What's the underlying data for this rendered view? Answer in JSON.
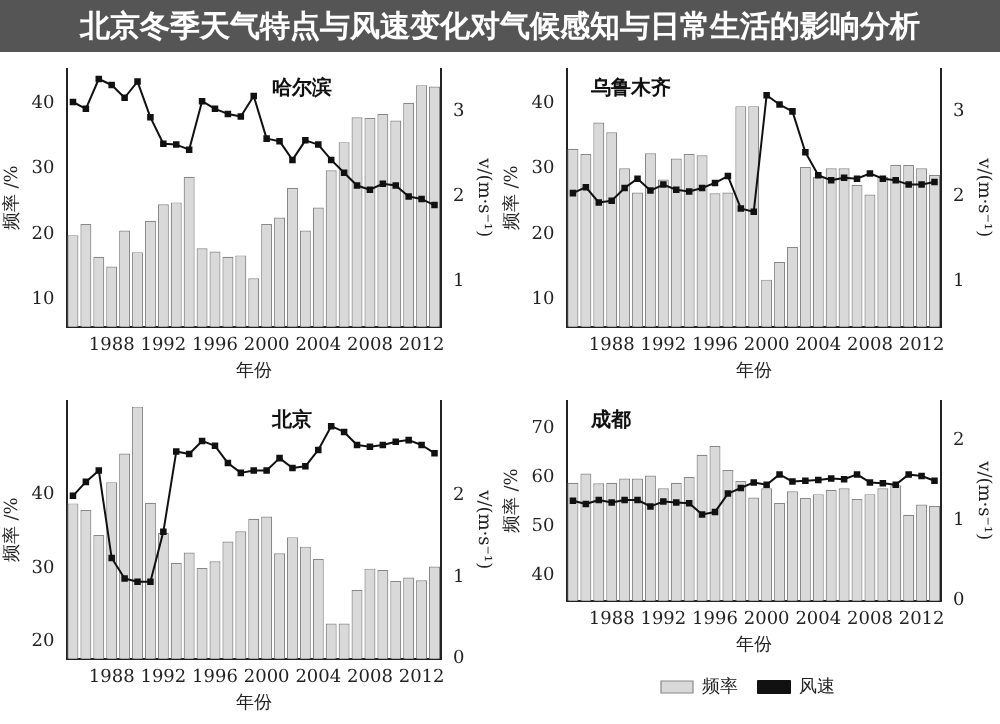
{
  "chart_data": [
    {
      "type": "bar",
      "title": "北京冬季天气特点与风速变化对气候感知与日常生活的影响分析",
      "annotations": [
        "哈尔滨"
      ],
      "xlabel": "年份",
      "ylabel": "频率 /%",
      "y2label": "v/(m·s⁻¹)",
      "categories": [
        null,
        null,
        null,
        "1988",
        null,
        null,
        null,
        "1992",
        null,
        null,
        null,
        "1996",
        null,
        null,
        null,
        "2000",
        null,
        null,
        null,
        "2004",
        null,
        null,
        null,
        "2008",
        null,
        null,
        null,
        "2012",
        null
      ],
      "ylim": [
        5.8,
        45.2
      ],
      "yticks": [
        10,
        20,
        30,
        40
      ],
      "y2lim": [
        0.47,
        3.5
      ],
      "y2ticks": [
        1,
        2,
        3
      ],
      "grid": false,
      "legend": false,
      "series": [
        {
          "color": "#d9d9d9",
          "values": [
            19.8,
            21.5,
            16.5,
            15,
            20.5,
            17.2,
            22,
            24.5,
            24.8,
            28.7,
            17.8,
            17.3,
            16.5,
            16.7,
            13.2,
            21.5,
            22.5,
            27,
            20.5,
            24,
            29.7,
            34,
            37.8,
            37.7,
            38.3,
            37.3,
            40,
            42.7,
            42.5
          ]
        },
        {
          "type": "line",
          "axis": "y2",
          "color": "#111111",
          "marker": "square",
          "values": [
            3.11,
            3.03,
            3.38,
            3.31,
            3.16,
            3.35,
            2.93,
            2.62,
            2.61,
            2.55,
            3.12,
            3.03,
            2.97,
            2.94,
            3.18,
            2.68,
            2.65,
            2.43,
            2.66,
            2.61,
            2.43,
            2.28,
            2.13,
            2.08,
            2.15,
            2.13,
            2.0,
            1.97,
            1.9
          ]
        }
      ]
    },
    {
      "type": "bar",
      "annotations": [
        "乌鲁木齐"
      ],
      "xlabel": "年份",
      "ylabel": "频率 /%",
      "y2label": "v/(m·s⁻¹)",
      "categories": [
        null,
        null,
        null,
        "1988",
        null,
        null,
        null,
        "1992",
        null,
        null,
        null,
        "1996",
        null,
        null,
        null,
        "2000",
        null,
        null,
        null,
        "2004",
        null,
        null,
        null,
        "2008",
        null,
        null,
        null,
        "2012",
        null
      ],
      "ylim": [
        5.8,
        45.2
      ],
      "yticks": [
        10,
        20,
        30,
        40
      ],
      "y2lim": [
        0.47,
        3.5
      ],
      "y2ticks": [
        1,
        2,
        3
      ],
      "grid": false,
      "legend": false,
      "series": [
        {
          "color": "#d9d9d9",
          "values": [
            33,
            32.2,
            37,
            35.5,
            30,
            26.3,
            32.3,
            28.3,
            31.5,
            32.2,
            32,
            26.2,
            26.3,
            39.5,
            39.5,
            13,
            15.7,
            18,
            30.2,
            28.7,
            30,
            30,
            27.5,
            26,
            28.7,
            30.5,
            30.5,
            30,
            29
          ]
        },
        {
          "type": "line",
          "axis": "y2",
          "color": "#111111",
          "marker": "square",
          "values": [
            2.04,
            2.11,
            1.93,
            1.95,
            2.1,
            2.21,
            2.07,
            2.14,
            2.08,
            2.06,
            2.1,
            2.16,
            2.24,
            1.86,
            1.82,
            3.19,
            3.08,
            3.0,
            2.52,
            2.25,
            2.19,
            2.22,
            2.21,
            2.27,
            2.21,
            2.19,
            2.14,
            2.14,
            2.17
          ]
        }
      ]
    },
    {
      "type": "bar",
      "annotations": [
        "北京"
      ],
      "xlabel": "年份",
      "ylabel": "频率 /%",
      "y2label": "v/(m·s⁻¹)",
      "categories": [
        null,
        null,
        null,
        "1988",
        null,
        null,
        null,
        "1992",
        null,
        null,
        null,
        "1996",
        null,
        null,
        null,
        "2000",
        null,
        null,
        null,
        "2004",
        null,
        null,
        null,
        "2008",
        null,
        null,
        null,
        "2012",
        null
      ],
      "ylim": [
        17.6,
        52.8
      ],
      "yticks": [
        20,
        30,
        40
      ],
      "y2lim": [
        0,
        3.15
      ],
      "y2ticks": [
        0,
        1,
        2
      ],
      "grid": false,
      "legend": false,
      "series": [
        {
          "color": "#d9d9d9",
          "values": [
            38.8,
            37.9,
            34.5,
            41.7,
            45.6,
            52,
            38.9,
            34.8,
            30.7,
            32.1,
            30,
            30.9,
            33.6,
            35,
            36.7,
            37,
            32,
            34.2,
            32.9,
            31.2,
            22.4,
            22.4,
            27,
            29.9,
            29.7,
            28.2,
            28.7,
            28.3,
            30.2
          ]
        },
        {
          "type": "line",
          "axis": "y2",
          "color": "#111111",
          "marker": "square",
          "values": [
            1.99,
            2.16,
            2.3,
            1.23,
            0.98,
            0.94,
            0.94,
            1.55,
            2.53,
            2.5,
            2.66,
            2.6,
            2.39,
            2.27,
            2.3,
            2.3,
            2.45,
            2.33,
            2.35,
            2.55,
            2.84,
            2.77,
            2.61,
            2.59,
            2.61,
            2.65,
            2.67,
            2.61,
            2.51
          ]
        }
      ]
    },
    {
      "type": "bar",
      "annotations": [
        "成都"
      ],
      "xlabel": "年份",
      "ylabel": "频率 /%",
      "y2label": "v/(m·s⁻¹)",
      "categories": [
        null,
        null,
        null,
        "1988",
        null,
        null,
        null,
        "1992",
        null,
        null,
        null,
        "1996",
        null,
        null,
        null,
        "2000",
        null,
        null,
        null,
        "2004",
        null,
        null,
        null,
        "2008",
        null,
        null,
        null,
        "2012",
        null
      ],
      "ylim": [
        34.8,
        75.5
      ],
      "yticks": [
        40,
        50,
        60,
        70
      ],
      "y2lim": [
        0,
        2.5
      ],
      "y2ticks": [
        0,
        1,
        2
      ],
      "grid": false,
      "legend": "bottom",
      "series": [
        {
          "name": "频率",
          "color": "#d9d9d9",
          "values": [
            58.8,
            60.7,
            58.7,
            58.8,
            59.7,
            59.7,
            60.3,
            57.7,
            58.8,
            60,
            64.5,
            66.3,
            61.4,
            59.2,
            55.8,
            57.7,
            54.7,
            57.1,
            55.7,
            56.5,
            57.4,
            57.7,
            55.5,
            56.5,
            57.7,
            58.3,
            52.3,
            54.4,
            54.1
          ]
        },
        {
          "type": "line",
          "name": "风速",
          "axis": "y2",
          "color": "#111111",
          "marker": "square",
          "values": [
            1.25,
            1.21,
            1.26,
            1.23,
            1.26,
            1.26,
            1.18,
            1.24,
            1.23,
            1.22,
            1.08,
            1.11,
            1.34,
            1.41,
            1.48,
            1.45,
            1.58,
            1.49,
            1.5,
            1.51,
            1.53,
            1.52,
            1.58,
            1.48,
            1.47,
            1.45,
            1.58,
            1.56,
            1.5
          ]
        }
      ]
    }
  ]
}
